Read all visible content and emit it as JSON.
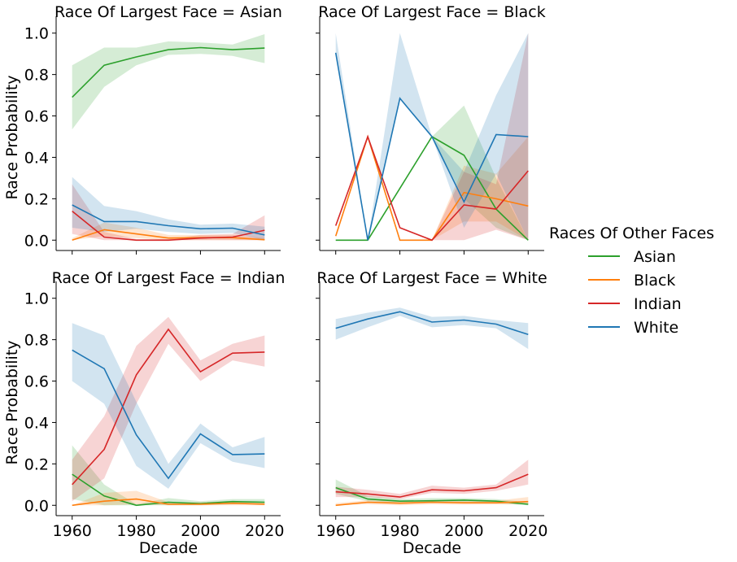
{
  "chart_data": {
    "type": "line",
    "facet_row_label": "Race Of Largest Face",
    "xlabel": "Decade",
    "ylabel": "Race Probability",
    "xlim": [
      1955,
      2025
    ],
    "ylim": [
      -0.05,
      1.05
    ],
    "x": [
      1960,
      1970,
      1980,
      1990,
      2000,
      2010,
      2020
    ],
    "x_ticks": [
      1960,
      1980,
      2000,
      2020
    ],
    "y_ticks": [
      0.0,
      0.2,
      0.4,
      0.6,
      0.8,
      1.0
    ],
    "x_tick_labels": [
      "1960",
      "1980",
      "2000",
      "2020"
    ],
    "y_tick_labels": [
      "0.0",
      "0.2",
      "0.4",
      "0.6",
      "0.8",
      "1.0"
    ],
    "grid": false,
    "legend": {
      "title": "Races Of Other Faces",
      "placement": "right",
      "entries": [
        "Asian",
        "Black",
        "Indian",
        "White"
      ]
    },
    "colors": {
      "Asian": "#2ca02c",
      "Black": "#ff7f0e",
      "Indian": "#d62728",
      "White": "#1f77b4"
    },
    "panels": [
      {
        "title": "Race Of Largest Face = Asian",
        "series": [
          {
            "name": "Asian",
            "values": [
              0.69,
              0.845,
              0.885,
              0.92,
              0.93,
              0.92,
              0.928
            ],
            "ci_low": [
              0.535,
              0.74,
              0.845,
              0.895,
              0.9,
              0.89,
              0.855
            ],
            "ci_high": [
              0.845,
              0.93,
              0.93,
              0.96,
              0.955,
              0.945,
              0.995
            ]
          },
          {
            "name": "Black",
            "values": [
              0.0,
              0.05,
              0.03,
              0.01,
              0.012,
              0.012,
              0.002
            ],
            "ci_low": [
              0.0,
              0.02,
              0.01,
              0.0,
              0.0,
              0.0,
              0.0
            ],
            "ci_high": [
              0.01,
              0.085,
              0.06,
              0.025,
              0.025,
              0.025,
              0.01
            ]
          },
          {
            "name": "Indian",
            "values": [
              0.14,
              0.015,
              0.0,
              0.0,
              0.01,
              0.015,
              0.048
            ],
            "ci_low": [
              0.03,
              0.0,
              0.0,
              0.0,
              0.0,
              0.0,
              0.0
            ],
            "ci_high": [
              0.27,
              0.04,
              0.005,
              0.005,
              0.025,
              0.03,
              0.12
            ]
          },
          {
            "name": "White",
            "values": [
              0.17,
              0.09,
              0.09,
              0.07,
              0.055,
              0.058,
              0.025
            ],
            "ci_low": [
              0.06,
              0.04,
              0.055,
              0.04,
              0.03,
              0.035,
              0.0
            ],
            "ci_high": [
              0.305,
              0.165,
              0.14,
              0.1,
              0.075,
              0.08,
              0.065
            ]
          }
        ]
      },
      {
        "title": "Race Of Largest Face = Black",
        "series": [
          {
            "name": "Asian",
            "values": [
              0.0,
              0.0,
              0.25,
              0.5,
              0.41,
              0.15,
              0.0
            ],
            "ci_low": [
              0.0,
              0.0,
              0.25,
              0.5,
              0.2,
              0.06,
              0.0
            ],
            "ci_high": [
              0.0,
              0.0,
              0.25,
              0.5,
              0.65,
              0.3,
              0.0
            ]
          },
          {
            "name": "Black",
            "values": [
              0.02,
              0.5,
              0.0,
              0.0,
              0.23,
              0.2,
              0.165
            ],
            "ci_low": [
              0.02,
              0.5,
              0.0,
              0.0,
              0.09,
              0.09,
              0.0
            ],
            "ci_high": [
              0.02,
              0.5,
              0.0,
              0.0,
              0.36,
              0.32,
              0.5
            ]
          },
          {
            "name": "Indian",
            "values": [
              0.07,
              0.5,
              0.06,
              0.0,
              0.17,
              0.15,
              0.335
            ],
            "ci_low": [
              0.07,
              0.5,
              0.06,
              0.0,
              0.0,
              0.05,
              0.0
            ],
            "ci_high": [
              0.07,
              0.5,
              0.06,
              0.0,
              0.33,
              0.27,
              1.0
            ]
          },
          {
            "name": "White",
            "values": [
              0.905,
              0.0,
              0.685,
              0.5,
              0.185,
              0.51,
              0.5
            ],
            "ci_low": [
              0.905,
              0.0,
              0.685,
              0.5,
              0.06,
              0.32,
              0.0
            ],
            "ci_high": [
              1.0,
              0.0,
              1.0,
              0.5,
              0.33,
              0.7,
              1.0
            ]
          }
        ]
      },
      {
        "title": "Race Of Largest Face = Indian",
        "series": [
          {
            "name": "Asian",
            "values": [
              0.15,
              0.045,
              0.0,
              0.015,
              0.008,
              0.018,
              0.015
            ],
            "ci_low": [
              0.03,
              0.0,
              0.0,
              0.0,
              0.0,
              0.005,
              0.005
            ],
            "ci_high": [
              0.29,
              0.1,
              0.005,
              0.035,
              0.02,
              0.03,
              0.03
            ]
          },
          {
            "name": "Black",
            "values": [
              0.0,
              0.02,
              0.03,
              0.005,
              0.005,
              0.01,
              0.005
            ],
            "ci_low": [
              0.0,
              0.0,
              0.005,
              0.0,
              0.0,
              0.0,
              0.0
            ],
            "ci_high": [
              0.0,
              0.06,
              0.07,
              0.015,
              0.015,
              0.02,
              0.015
            ]
          },
          {
            "name": "Indian",
            "values": [
              0.1,
              0.27,
              0.63,
              0.85,
              0.645,
              0.735,
              0.74
            ],
            "ci_low": [
              0.02,
              0.13,
              0.49,
              0.78,
              0.6,
              0.7,
              0.67
            ],
            "ci_high": [
              0.22,
              0.43,
              0.77,
              0.91,
              0.7,
              0.78,
              0.82
            ]
          },
          {
            "name": "White",
            "values": [
              0.75,
              0.66,
              0.34,
              0.13,
              0.345,
              0.245,
              0.248
            ],
            "ci_low": [
              0.6,
              0.49,
              0.19,
              0.08,
              0.3,
              0.21,
              0.18
            ],
            "ci_high": [
              0.88,
              0.82,
              0.5,
              0.2,
              0.395,
              0.28,
              0.33
            ]
          }
        ]
      },
      {
        "title": "Race Of Largest Face = White",
        "series": [
          {
            "name": "Asian",
            "values": [
              0.085,
              0.03,
              0.02,
              0.022,
              0.025,
              0.02,
              0.005
            ],
            "ci_low": [
              0.055,
              0.02,
              0.01,
              0.012,
              0.015,
              0.01,
              0.0
            ],
            "ci_high": [
              0.125,
              0.045,
              0.03,
              0.035,
              0.035,
              0.03,
              0.015
            ]
          },
          {
            "name": "Black",
            "values": [
              0.0,
              0.015,
              0.01,
              0.015,
              0.012,
              0.012,
              0.018
            ],
            "ci_low": [
              0.0,
              0.005,
              0.0,
              0.005,
              0.003,
              0.004,
              0.005
            ],
            "ci_high": [
              0.01,
              0.025,
              0.02,
              0.025,
              0.02,
              0.022,
              0.04
            ]
          },
          {
            "name": "Indian",
            "values": [
              0.065,
              0.055,
              0.04,
              0.075,
              0.07,
              0.085,
              0.15
            ],
            "ci_low": [
              0.04,
              0.04,
              0.03,
              0.06,
              0.055,
              0.07,
              0.1
            ],
            "ci_high": [
              0.09,
              0.075,
              0.055,
              0.095,
              0.085,
              0.1,
              0.22
            ]
          },
          {
            "name": "White",
            "values": [
              0.855,
              0.9,
              0.935,
              0.885,
              0.895,
              0.875,
              0.825
            ],
            "ci_low": [
              0.8,
              0.86,
              0.915,
              0.86,
              0.87,
              0.855,
              0.755
            ],
            "ci_high": [
              0.9,
              0.93,
              0.955,
              0.91,
              0.915,
              0.895,
              0.88
            ]
          }
        ]
      }
    ]
  }
}
